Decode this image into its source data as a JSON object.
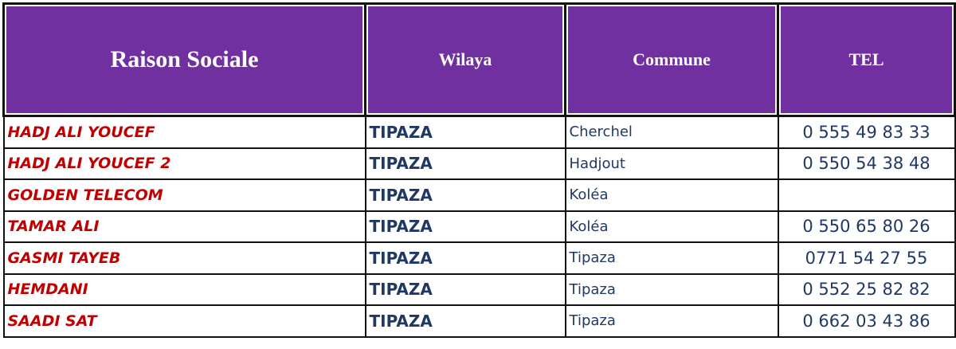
{
  "table": {
    "header": [
      "Raison Sociale",
      "Wilaya",
      "Commune",
      "TEL"
    ],
    "rows": [
      {
        "name": "HADJ ALI YOUCEF",
        "wilaya": "TIPAZA",
        "commune": "Cherchel",
        "tel": "0 555 49 83 33"
      },
      {
        "name": "HADJ ALI YOUCEF 2",
        "wilaya": "TIPAZA",
        "commune": "Hadjout",
        "tel": "0 550 54 38 48"
      },
      {
        "name": "GOLDEN TELECOM",
        "wilaya": "TIPAZA",
        "commune": "Koléa"
      },
      {
        "name": "TAMAR ALI",
        "wilaya": "TIPAZA",
        "commune": "Koléa",
        "tel": "0 550 65 80 26"
      },
      {
        "name": "GASMI TAYEB",
        "wilaya": "TIPAZA",
        "commune": "Tipaza",
        "tel": "0771 54 27 55"
      },
      {
        "name": "HEMDANI",
        "wilaya": "TIPAZA",
        "commune": "Tipaza",
        "tel": "0 552 25 82 82"
      },
      {
        "name": "SAADI SAT",
        "wilaya": "TIPAZA",
        "commune": "Tipaza",
        "tel": "0 662 03 43 86"
      }
    ]
  }
}
